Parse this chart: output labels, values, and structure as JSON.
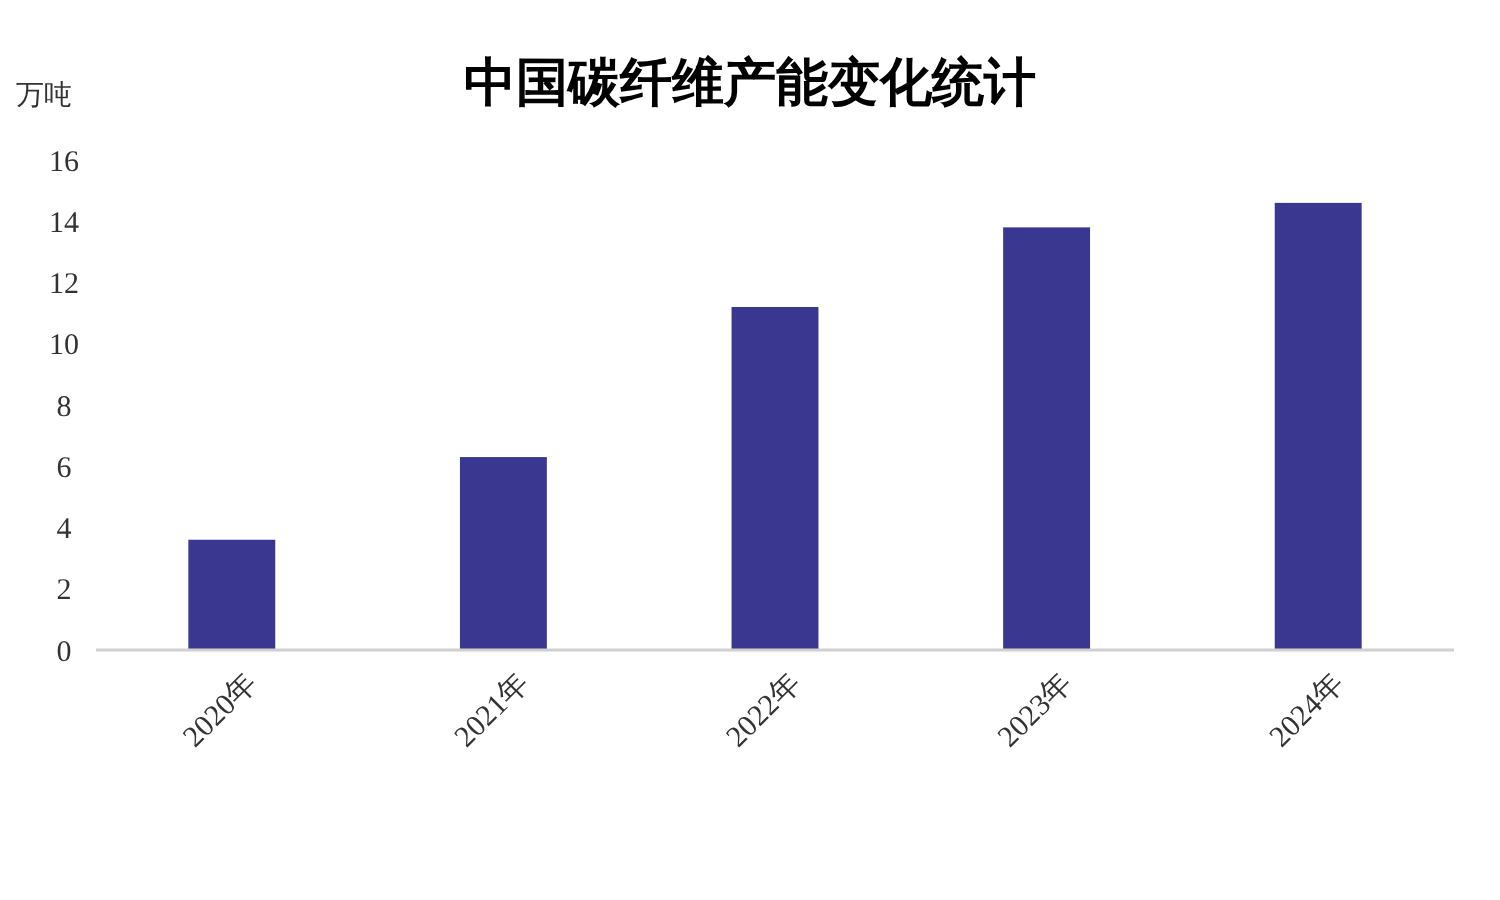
{
  "chart_data": {
    "type": "bar",
    "title": "中国碳纤维产能变化统计",
    "ylabel": "万吨",
    "categories": [
      "2020年",
      "2021年",
      "2022年",
      "2023年",
      "2024年"
    ],
    "values": [
      3.6,
      6.3,
      11.2,
      13.8,
      14.6
    ],
    "color": "#3a3791",
    "ylim": [
      0,
      16
    ],
    "yticks": [
      0,
      2,
      4,
      6,
      8,
      10,
      12,
      14,
      16
    ],
    "grid": false
  }
}
